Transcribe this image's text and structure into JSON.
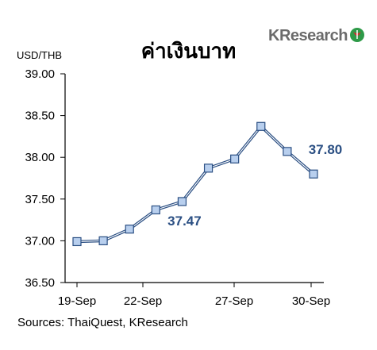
{
  "header": {
    "title": "ค่าเงินบาท",
    "logo_text": "KResearch"
  },
  "chart_data": {
    "type": "line",
    "title": "ค่าเงินบาท",
    "ylabel": "USD/THB",
    "xlabel": "",
    "ylim": [
      36.5,
      39.0
    ],
    "yticks": [
      "39.00",
      "38.50",
      "38.00",
      "37.50",
      "37.00",
      "36.50"
    ],
    "xtick_labels": [
      "19-Sep",
      "22-Sep",
      "27-Sep",
      "30-Sep"
    ],
    "grid": false,
    "series": [
      {
        "values": [
          36.99,
          37.0,
          37.14,
          37.37,
          37.47,
          37.87,
          37.98,
          38.37,
          38.07,
          37.8
        ],
        "color": "#2b4f83",
        "marker_fill": "#b8cfee"
      }
    ],
    "annotations": [
      {
        "text": "37.47",
        "point_index": 4
      },
      {
        "text": "37.80",
        "point_index": 9
      }
    ]
  },
  "footer": {
    "source": "Sources: ThaiQuest, KResearch"
  }
}
